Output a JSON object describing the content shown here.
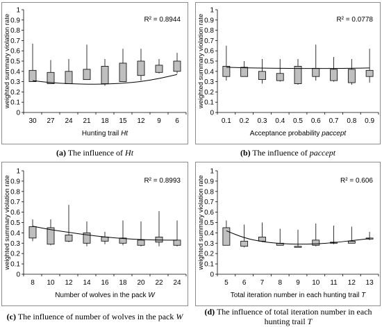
{
  "chart_data": [
    {
      "type": "box",
      "ylabel": "weighted summary violation rate",
      "xlabel": "Hunting trail",
      "xlabel_var": "Ht",
      "r2": "R² = 0.8944",
      "ylim": [
        0,
        1
      ],
      "yticks": [
        "0",
        "0.1",
        "0.2",
        "0.3",
        "0.4",
        "0.5",
        "0.6",
        "0.7",
        "0.8",
        "0.9",
        "1"
      ],
      "categories": [
        "30",
        "27",
        "24",
        "21",
        "18",
        "15",
        "12",
        "9",
        "6"
      ],
      "boxes": [
        {
          "min": 0.3,
          "q1": 0.3,
          "q3": 0.41,
          "max": 0.67
        },
        {
          "min": 0.28,
          "q1": 0.28,
          "q3": 0.39,
          "max": 0.51
        },
        {
          "min": 0.28,
          "q1": 0.28,
          "q3": 0.4,
          "max": 0.52
        },
        {
          "min": 0.32,
          "q1": 0.32,
          "q3": 0.42,
          "max": 0.66
        },
        {
          "min": 0.26,
          "q1": 0.28,
          "q3": 0.45,
          "max": 0.52
        },
        {
          "min": 0.3,
          "q1": 0.3,
          "q3": 0.48,
          "max": 0.62
        },
        {
          "min": 0.31,
          "q1": 0.36,
          "q3": 0.5,
          "max": 0.62
        },
        {
          "min": 0.38,
          "q1": 0.39,
          "q3": 0.46,
          "max": 0.52
        },
        {
          "min": 0.38,
          "q1": 0.4,
          "q3": 0.5,
          "max": 0.58
        }
      ],
      "trend": [
        0.31,
        0.29,
        0.28,
        0.275,
        0.275,
        0.285,
        0.3,
        0.33,
        0.37
      ],
      "caption": {
        "label": "(a)",
        "text": "The influence of",
        "var": "Ht"
      }
    },
    {
      "type": "box",
      "ylabel": "weighted summary violation rate",
      "xlabel": "Acceptance probability",
      "xlabel_var": "paccept",
      "r2": "R² = 0.0778",
      "ylim": [
        0,
        1
      ],
      "yticks": [
        "0",
        "0.1",
        "0.2",
        "0.3",
        "0.4",
        "0.5",
        "0.6",
        "0.7",
        "0.8",
        "0.9",
        "1"
      ],
      "categories": [
        "0.1",
        "0.2",
        "0.3",
        "0.4",
        "0.5",
        "0.6",
        "0.7",
        "0.8",
        "0.9"
      ],
      "boxes": [
        {
          "min": 0.31,
          "q1": 0.35,
          "q3": 0.45,
          "max": 0.65
        },
        {
          "min": 0.35,
          "q1": 0.35,
          "q3": 0.44,
          "max": 0.5
        },
        {
          "min": 0.28,
          "q1": 0.32,
          "q3": 0.4,
          "max": 0.52
        },
        {
          "min": 0.3,
          "q1": 0.31,
          "q3": 0.38,
          "max": 0.52
        },
        {
          "min": 0.27,
          "q1": 0.28,
          "q3": 0.45,
          "max": 0.52
        },
        {
          "min": 0.31,
          "q1": 0.35,
          "q3": 0.43,
          "max": 0.66
        },
        {
          "min": 0.3,
          "q1": 0.31,
          "q3": 0.42,
          "max": 0.54
        },
        {
          "min": 0.27,
          "q1": 0.29,
          "q3": 0.42,
          "max": 0.52
        },
        {
          "min": 0.29,
          "q1": 0.35,
          "q3": 0.41,
          "max": 0.62
        }
      ],
      "trend": [
        0.44,
        0.435,
        0.432,
        0.43,
        0.428,
        0.428,
        0.428,
        0.43,
        0.433
      ],
      "caption": {
        "label": "(b)",
        "text": "The influence of",
        "var": "paccept"
      }
    },
    {
      "type": "box",
      "ylabel": "weighted summary violation rate",
      "xlabel": "Number of wolves in the pack",
      "xlabel_var": "W",
      "r2": "R² = 0.8993",
      "ylim": [
        0,
        1
      ],
      "yticks": [
        "0",
        "0.1",
        "0.2",
        "0.3",
        "0.4",
        "0.5",
        "0.6",
        "0.7",
        "0.8",
        "0.9",
        "1"
      ],
      "categories": [
        "8",
        "10",
        "12",
        "14",
        "16",
        "18",
        "20",
        "22",
        "24"
      ],
      "boxes": [
        {
          "min": 0.32,
          "q1": 0.35,
          "q3": 0.46,
          "max": 0.53
        },
        {
          "min": 0.28,
          "q1": 0.29,
          "q3": 0.45,
          "max": 0.53
        },
        {
          "min": 0.31,
          "q1": 0.32,
          "q3": 0.38,
          "max": 0.67
        },
        {
          "min": 0.27,
          "q1": 0.3,
          "q3": 0.4,
          "max": 0.51
        },
        {
          "min": 0.29,
          "q1": 0.32,
          "q3": 0.36,
          "max": 0.41
        },
        {
          "min": 0.28,
          "q1": 0.3,
          "q3": 0.35,
          "max": 0.52
        },
        {
          "min": 0.27,
          "q1": 0.28,
          "q3": 0.33,
          "max": 0.51
        },
        {
          "min": 0.27,
          "q1": 0.31,
          "q3": 0.36,
          "max": 0.61
        },
        {
          "min": 0.27,
          "q1": 0.28,
          "q3": 0.33,
          "max": 0.52
        }
      ],
      "trend": [
        0.465,
        0.43,
        0.405,
        0.38,
        0.36,
        0.345,
        0.335,
        0.33,
        0.33
      ],
      "caption": {
        "label": "(c)",
        "text": "The influence of number of wolves in the pack",
        "var": "W"
      }
    },
    {
      "type": "box",
      "ylabel": "weighted summary violation rate",
      "xlabel": "Total iteration number in each hunting trail",
      "xlabel_var": "T",
      "r2": "R² = 0.606",
      "ylim": [
        0,
        1
      ],
      "yticks": [
        "0",
        "0.1",
        "0.2",
        "0.3",
        "0.4",
        "0.5",
        "0.6",
        "0.7",
        "0.8",
        "0.9",
        "1"
      ],
      "categories": [
        "5",
        "6",
        "7",
        "8",
        "9",
        "10",
        "11",
        "12",
        "13"
      ],
      "boxes": [
        {
          "min": 0.28,
          "q1": 0.28,
          "q3": 0.45,
          "max": 0.52
        },
        {
          "min": 0.26,
          "q1": 0.27,
          "q3": 0.32,
          "max": 0.48
        },
        {
          "min": 0.31,
          "q1": 0.32,
          "q3": 0.36,
          "max": 0.5
        },
        {
          "min": 0.28,
          "q1": 0.28,
          "q3": 0.3,
          "max": 0.44
        },
        {
          "min": 0.26,
          "q1": 0.26,
          "q3": 0.27,
          "max": 0.43
        },
        {
          "min": 0.27,
          "q1": 0.28,
          "q3": 0.33,
          "max": 0.49
        },
        {
          "min": 0.29,
          "q1": 0.3,
          "q3": 0.31,
          "max": 0.47
        },
        {
          "min": 0.3,
          "q1": 0.3,
          "q3": 0.32,
          "max": 0.46
        },
        {
          "min": 0.33,
          "q1": 0.34,
          "q3": 0.35,
          "max": 0.41
        }
      ],
      "trend": [
        0.42,
        0.35,
        0.315,
        0.295,
        0.29,
        0.292,
        0.305,
        0.325,
        0.345
      ],
      "caption": {
        "label": "(d)",
        "text": "The influence of total iteration number in each hunting trail",
        "var": "T"
      }
    }
  ],
  "colors": {
    "box_fill": "#bfbfbf",
    "stroke": "#000000",
    "frame": "#8c8c8c"
  }
}
